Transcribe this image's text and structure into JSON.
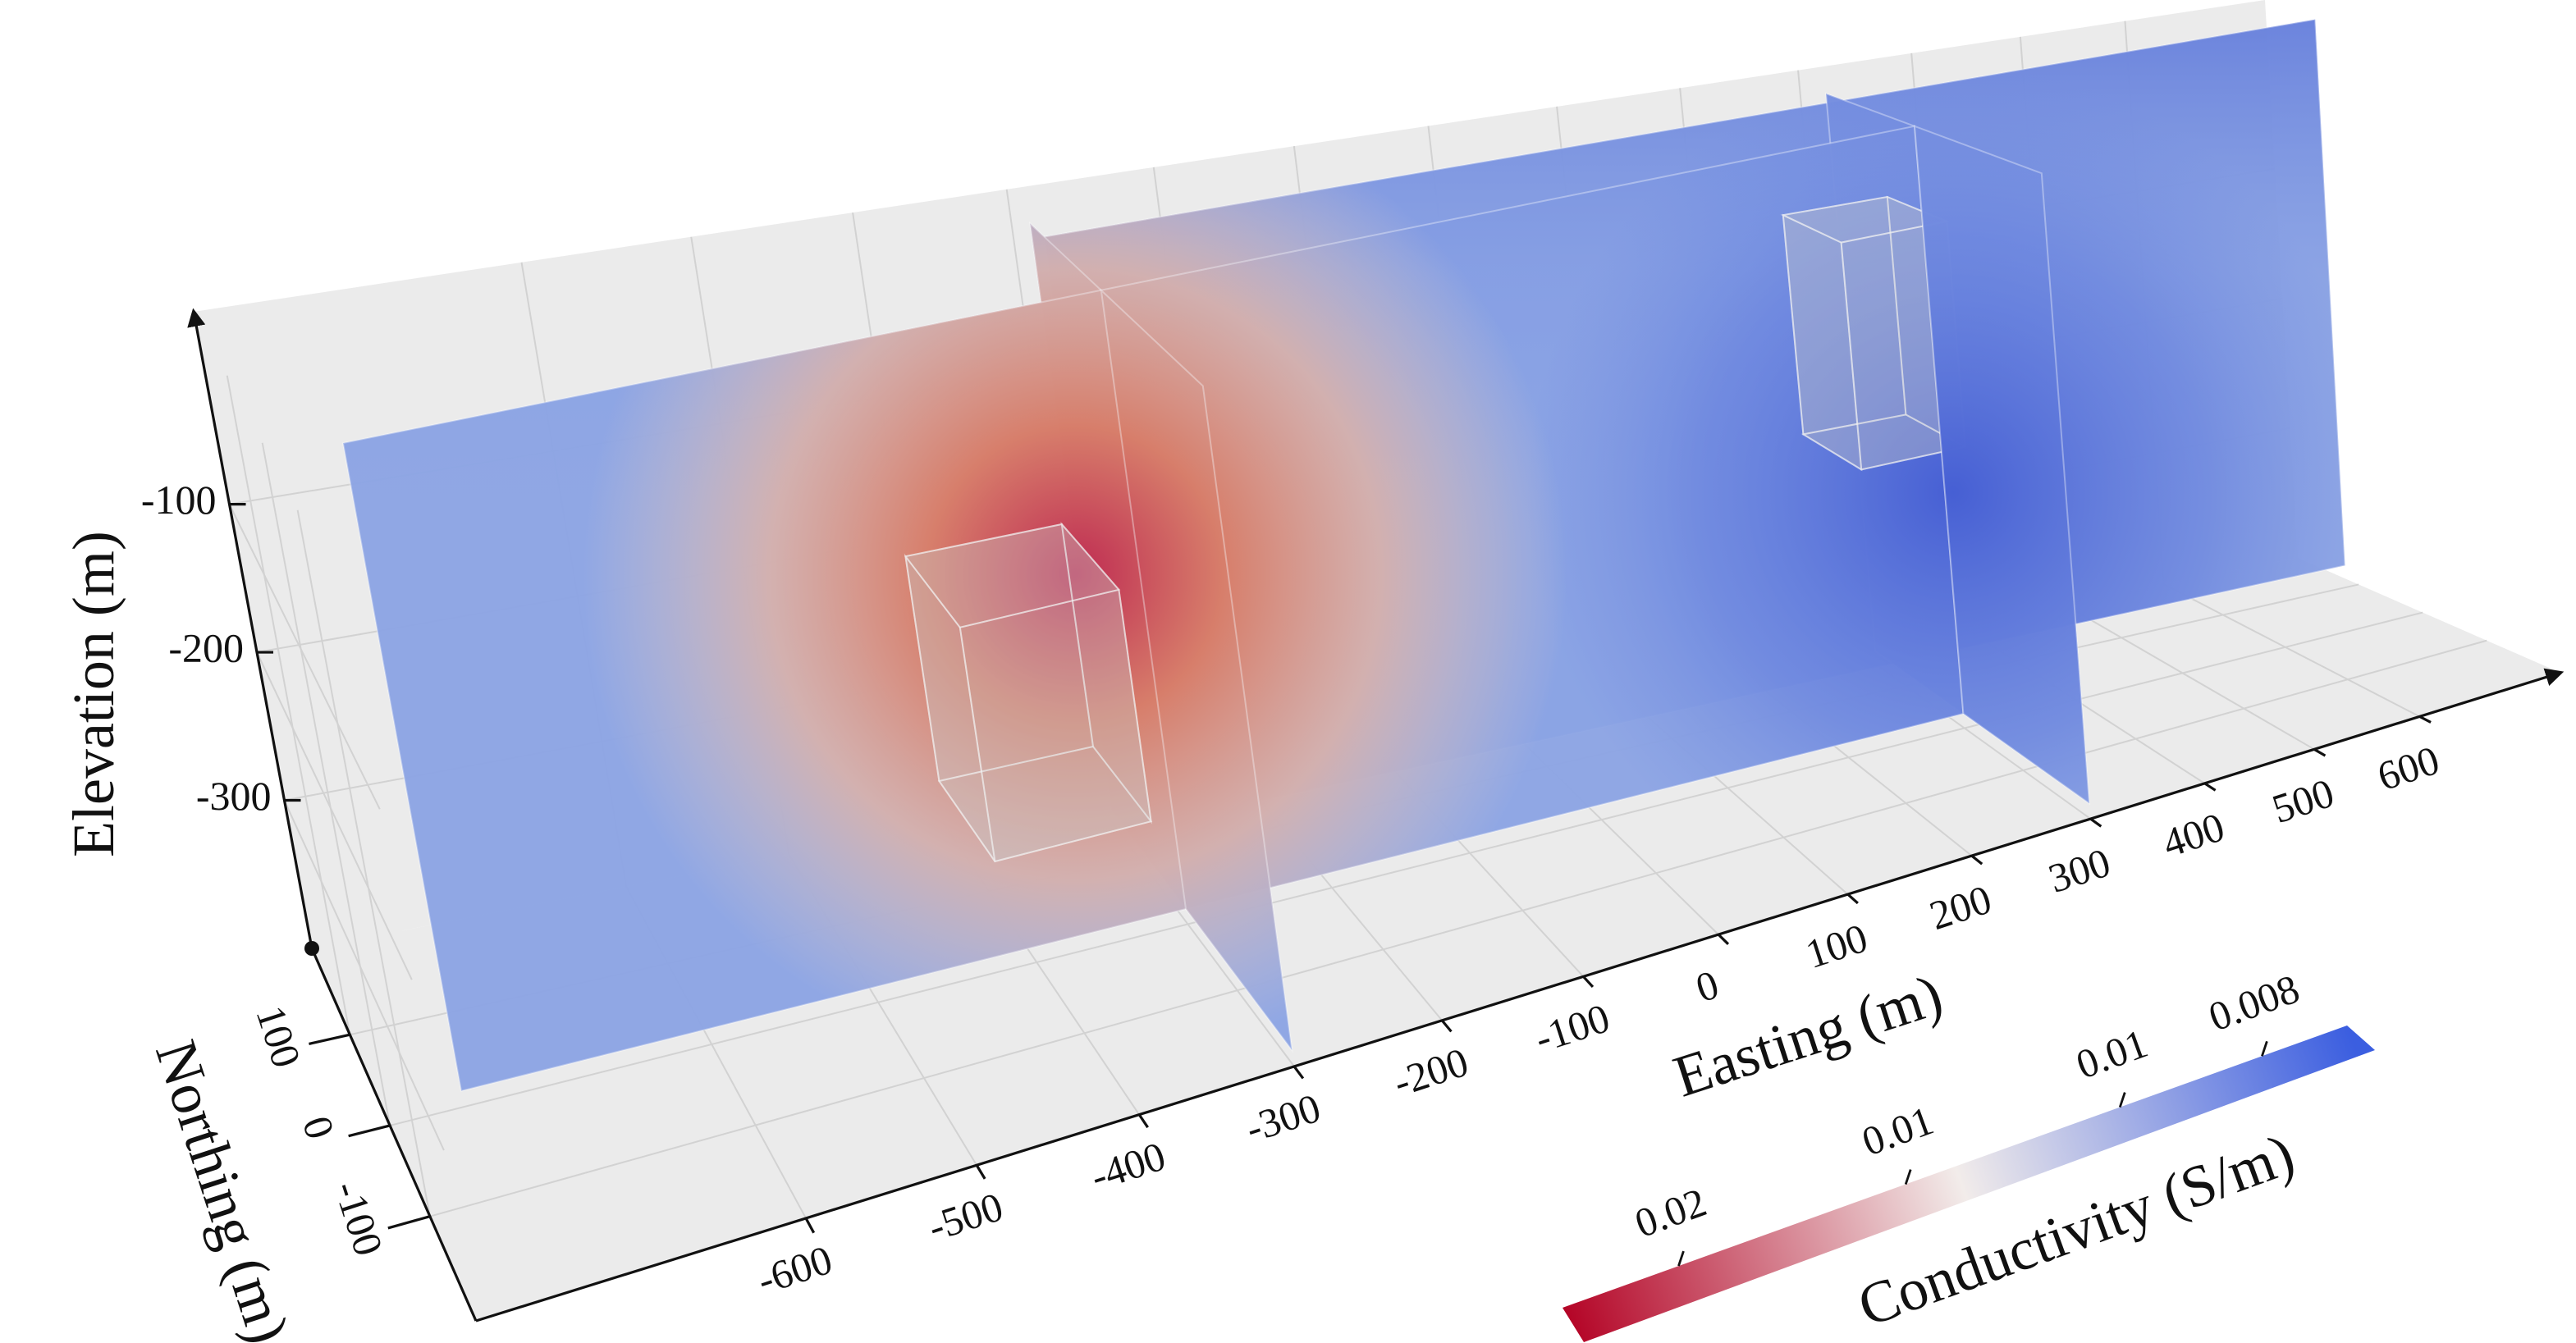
{
  "chart_data": {
    "type": "volume",
    "xlabel": "Easting (m)",
    "ylabel": "Northing (m)",
    "zlabel": "Elevation (m)",
    "xlim": [
      -780,
      740
    ],
    "ylim": [
      -215,
      195
    ],
    "zlim": [
      -400,
      30
    ],
    "xticks": [
      -600,
      -500,
      -400,
      -300,
      -200,
      -100,
      0,
      100,
      200,
      300,
      400,
      500,
      600
    ],
    "yticks": [
      100,
      0,
      -100
    ],
    "zticks": [
      -100,
      -200,
      -300
    ],
    "grid": true,
    "background_color": "#ebebeb",
    "colorbar": {
      "label": "Conductivity (S/m)",
      "lim": [
        0.024,
        0.007
      ],
      "log_scale": true,
      "ticks": [
        0.02,
        {
          "value": 0.014,
          "label": "0.01"
        },
        0.01,
        0.008
      ],
      "colors": [
        "#b40426",
        "#f2ecea",
        "#3b5ee0"
      ]
    }
  }
}
